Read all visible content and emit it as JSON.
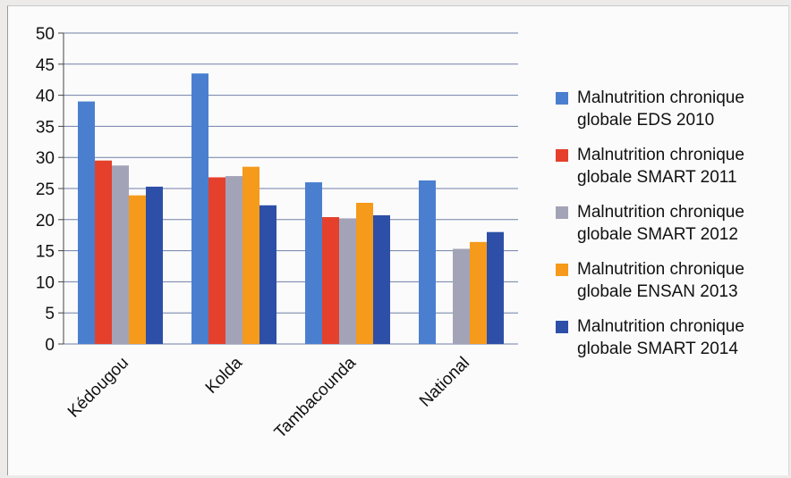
{
  "chart_data": {
    "type": "bar",
    "categories": [
      "Kédougou",
      "Kolda",
      "Tambacounda",
      "National"
    ],
    "ylim": [
      0,
      50
    ],
    "yticks": [
      0,
      5,
      10,
      15,
      20,
      25,
      30,
      35,
      40,
      45,
      50
    ],
    "grid": true,
    "legend_position": "right",
    "series": [
      {
        "name": "Malnutrition chronique globale EDS 2010",
        "color": "#4a7fd0",
        "values": [
          39,
          43.5,
          26,
          26.3
        ]
      },
      {
        "name": "Malnutrition chronique globale SMART 2011",
        "color": "#e5402b",
        "values": [
          29.5,
          26.8,
          20.4,
          null
        ]
      },
      {
        "name": "Malnutrition chronique globale SMART 2012",
        "color": "#a3a3b8",
        "values": [
          28.7,
          27,
          20.2,
          15.3
        ]
      },
      {
        "name": "Malnutrition chronique globale ENSAN 2013",
        "color": "#f59a1a",
        "values": [
          23.9,
          28.5,
          22.7,
          16.4
        ]
      },
      {
        "name": "Malnutrition chronique globale SMART 2014",
        "color": "#2d4fa8",
        "values": [
          25.3,
          22.3,
          20.7,
          18
        ]
      }
    ]
  },
  "legend": {
    "items": [
      {
        "label": "Malnutrition chronique\nglobale EDS 2010",
        "color": "#4a7fd0"
      },
      {
        "label": "Malnutrition chronique\nglobale SMART 2011",
        "color": "#e5402b"
      },
      {
        "label": "Malnutrition chronique\nglobale SMART 2012",
        "color": "#a3a3b8"
      },
      {
        "label": "Malnutrition chronique\nglobale ENSAN 2013",
        "color": "#f59a1a"
      },
      {
        "label": "Malnutrition chronique\nglobale SMART 2014",
        "color": "#2d4fa8"
      }
    ]
  }
}
